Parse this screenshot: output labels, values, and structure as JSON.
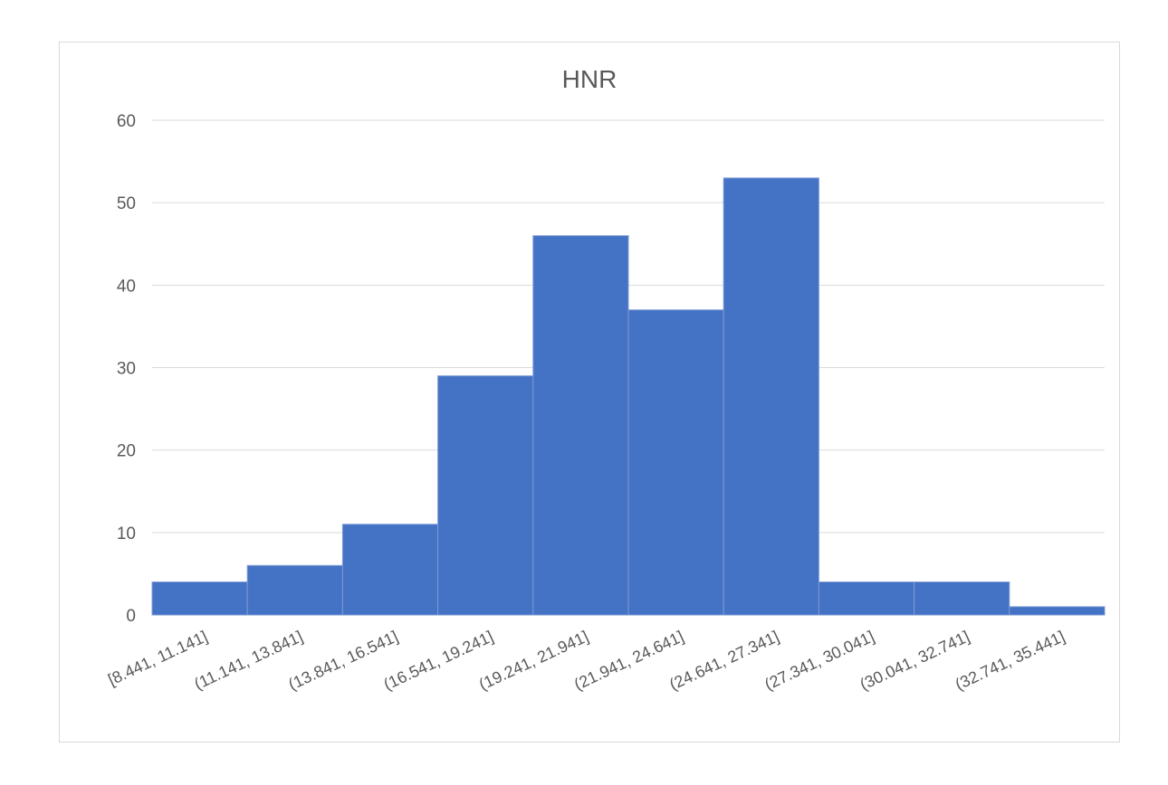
{
  "chart_data": {
    "type": "bar",
    "title": "HNR",
    "xlabel": "",
    "ylabel": "",
    "categories": [
      "[8.441, 11.141]",
      "(11.141, 13.841]",
      "(13.841, 16.541]",
      "(16.541, 19.241]",
      "(19.241, 21.941]",
      "(21.941, 24.641]",
      "(24.641, 27.341]",
      "(27.341, 30.041]",
      "(30.041, 32.741]",
      "(32.741, 35.441]"
    ],
    "values": [
      4,
      6,
      11,
      29,
      46,
      37,
      53,
      4,
      4,
      1
    ],
    "ylim": [
      0,
      60
    ],
    "yticks": [
      0,
      10,
      20,
      30,
      40,
      50,
      60
    ],
    "grid": true,
    "legend": "none",
    "bar_color": "#4472C4"
  }
}
